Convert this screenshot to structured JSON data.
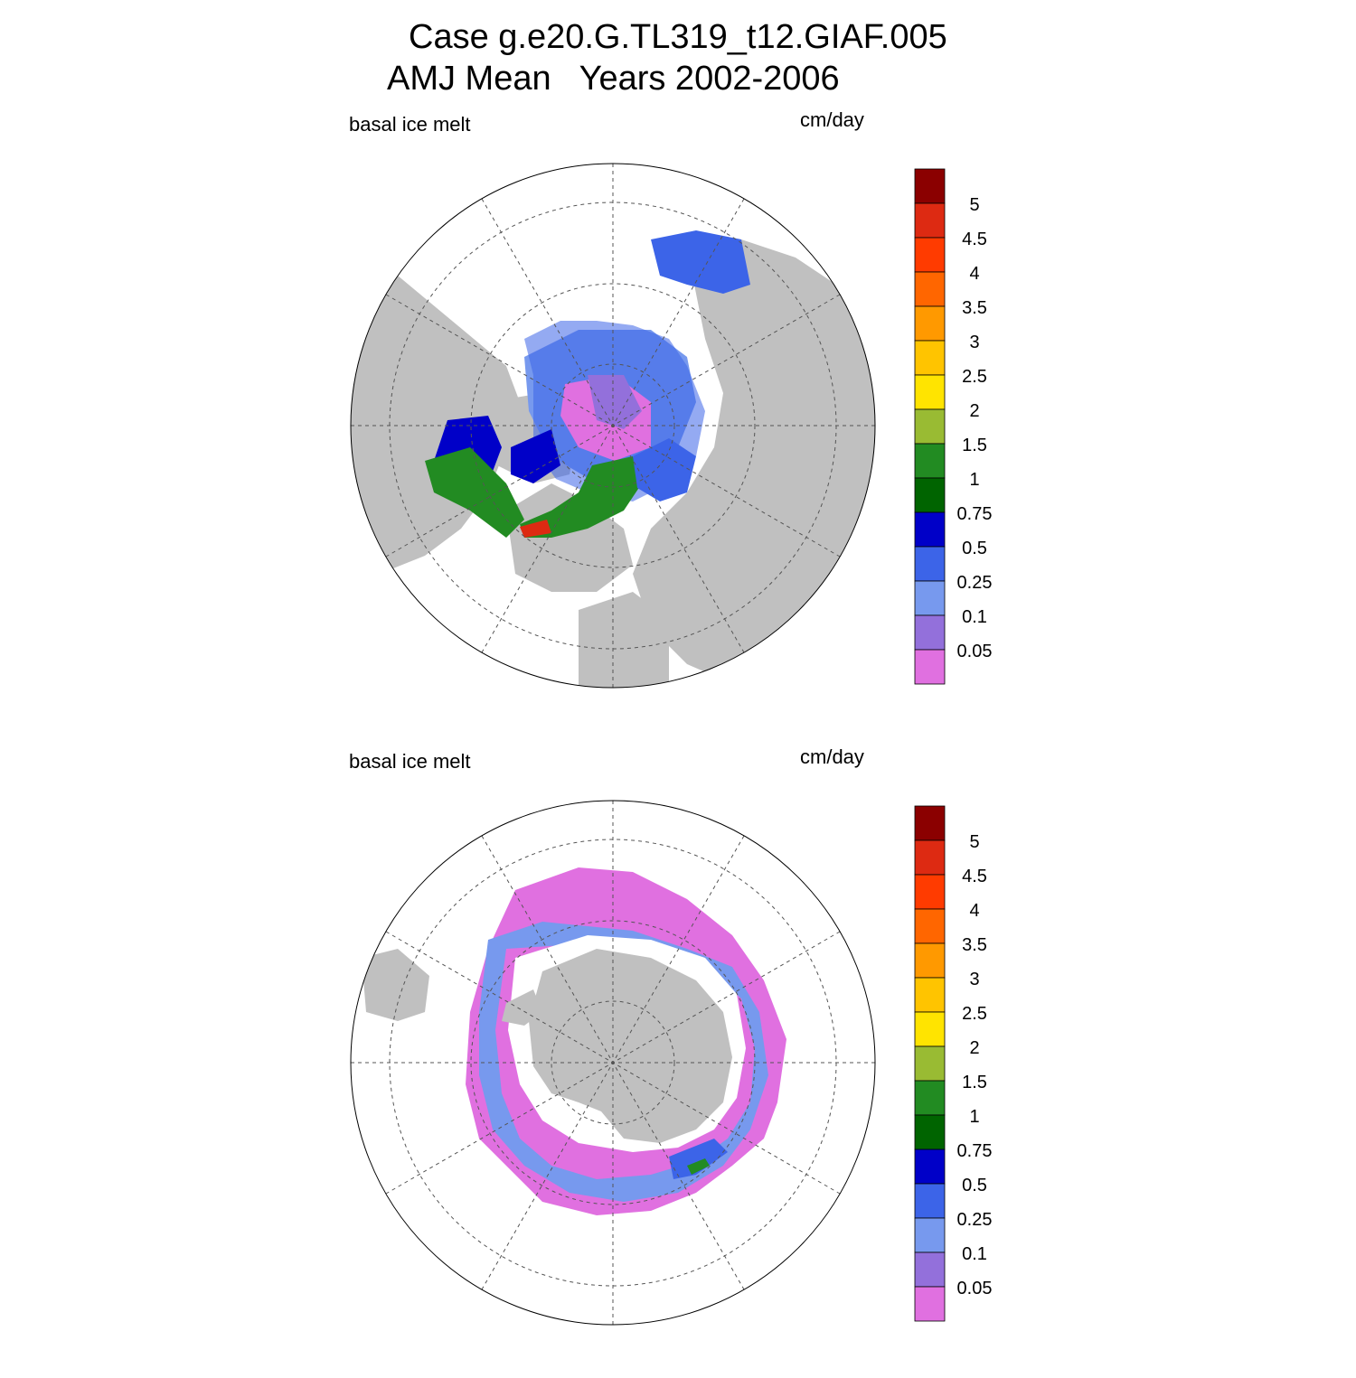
{
  "header": {
    "title_line1": "Case g.e20.G.TL319_t12.GIAF.005",
    "title_line2": "AMJ Mean   Years 2002-2006"
  },
  "panels": [
    {
      "id": "north",
      "left_label": "basal ice melt",
      "right_label": "cm/day"
    },
    {
      "id": "south",
      "left_label": "basal ice melt",
      "right_label": "cm/day"
    }
  ],
  "colorbar": {
    "tick_labels": [
      "5",
      "4.5",
      "4",
      "3.5",
      "3",
      "2.5",
      "2",
      "1.5",
      "1",
      "0.75",
      "0.5",
      "0.25",
      "0.1",
      "0.05"
    ],
    "colors_top_to_bottom": [
      "#8b0000",
      "#dd2a12",
      "#ff3b00",
      "#ff6600",
      "#ff9900",
      "#ffc400",
      "#ffe400",
      "#99bb33",
      "#228b22",
      "#006400",
      "#0000c8",
      "#3c64e8",
      "#7799ee",
      "#9370db",
      "#e070e0"
    ]
  },
  "colors": {
    "land": "#c0c0c0",
    "ocean": "#ffffff",
    "gridline": "#555555"
  }
}
